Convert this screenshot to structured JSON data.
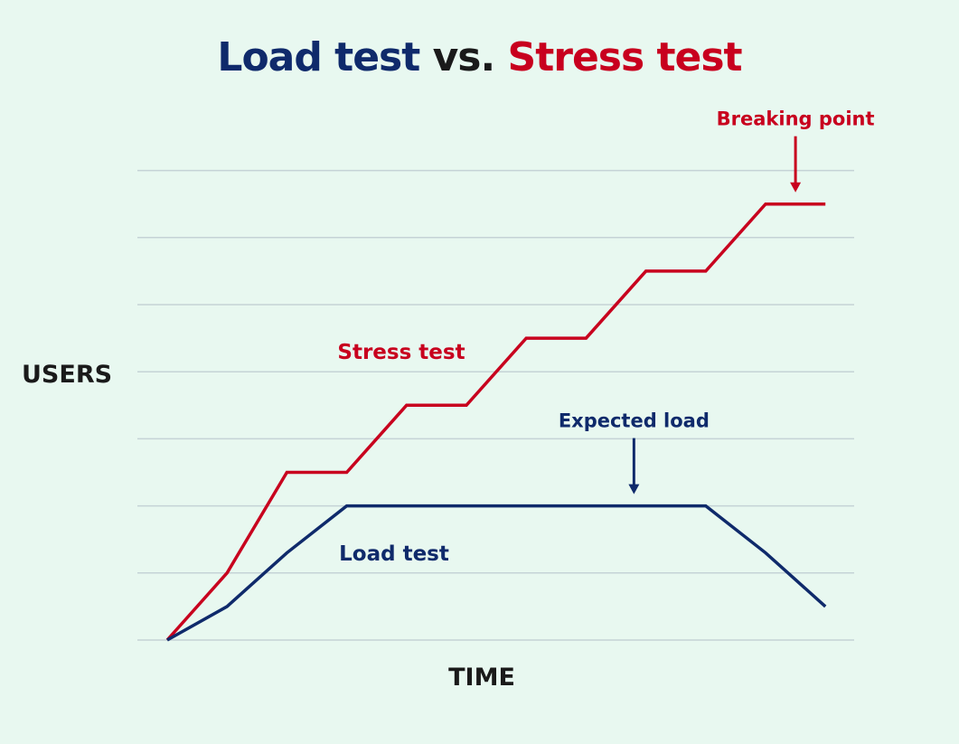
{
  "chart_data": {
    "type": "line",
    "title_parts": [
      "Load test",
      "vs.",
      "Stress test"
    ],
    "xlabel": "TIME",
    "ylabel": "USERS",
    "ylim": [
      0,
      7
    ],
    "grid": true,
    "x": [
      0,
      1,
      2,
      3,
      4,
      5,
      6,
      7,
      8,
      9,
      10,
      11
    ],
    "series": [
      {
        "name": "Stress test",
        "color": "#c8001e",
        "x": [
          0,
          1,
          2,
          3,
          4,
          5,
          6,
          7,
          8,
          9,
          10,
          11
        ],
        "values": [
          0,
          1,
          2.5,
          2.5,
          3.5,
          3.5,
          4.5,
          4.5,
          5.5,
          5.5,
          6.5,
          6.5
        ]
      },
      {
        "name": "Load test",
        "color": "#0f2a6b",
        "x": [
          0,
          1,
          2,
          3,
          9,
          10,
          11
        ],
        "values": [
          0,
          0.5,
          1.3,
          2,
          2,
          1.3,
          0.5
        ]
      }
    ],
    "annotations": [
      {
        "text": "Breaking point",
        "color": "#c8001e",
        "x": 10.5,
        "y": 6.5
      },
      {
        "text": "Expected load",
        "color": "#0f2a6b",
        "x": 7.8,
        "y": 2
      }
    ]
  }
}
